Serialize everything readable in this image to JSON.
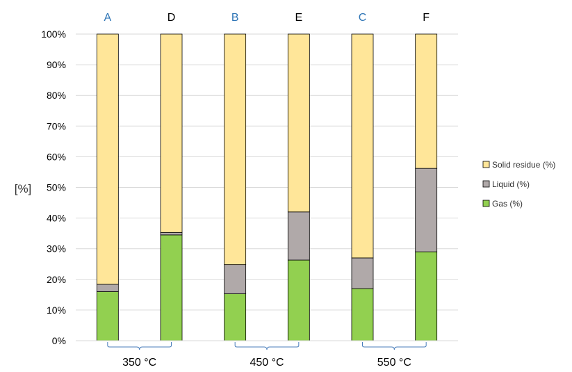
{
  "chart_data": {
    "type": "bar",
    "stacked": true,
    "title": "",
    "xlabel": "",
    "ylabel": "[%]",
    "ylim": [
      0,
      100
    ],
    "yticks": [
      "0%",
      "10%",
      "20%",
      "30%",
      "40%",
      "50%",
      "60%",
      "70%",
      "80%",
      "90%",
      "100%"
    ],
    "grid": true,
    "legend_position": "right",
    "categories": [
      "A",
      "D",
      "B",
      "E",
      "C",
      "F"
    ],
    "category_colors": [
      "#2e75b6",
      "#000000",
      "#2e75b6",
      "#000000",
      "#2e75b6",
      "#000000"
    ],
    "groups": [
      {
        "label": "350 °C",
        "members": [
          "A",
          "D"
        ]
      },
      {
        "label": "450 °C",
        "members": [
          "B",
          "E"
        ]
      },
      {
        "label": "550 °C",
        "members": [
          "C",
          "F"
        ]
      }
    ],
    "series": [
      {
        "name": "Gas (%)",
        "color": "#92d050",
        "values": [
          16,
          34.5,
          15.3,
          26.3,
          17,
          29
        ]
      },
      {
        "name": "Liquid (%)",
        "color": "#b0a9a9",
        "values": [
          2.4,
          0.8,
          9.5,
          15.7,
          10,
          27.2
        ]
      },
      {
        "name": "Solid residue (%)",
        "color": "#ffe699",
        "values": [
          81.6,
          64.7,
          75.2,
          58,
          73,
          43.8
        ]
      }
    ],
    "legend_order": [
      "Solid residue (%)",
      "Liquid (%)",
      "Gas (%)"
    ]
  }
}
